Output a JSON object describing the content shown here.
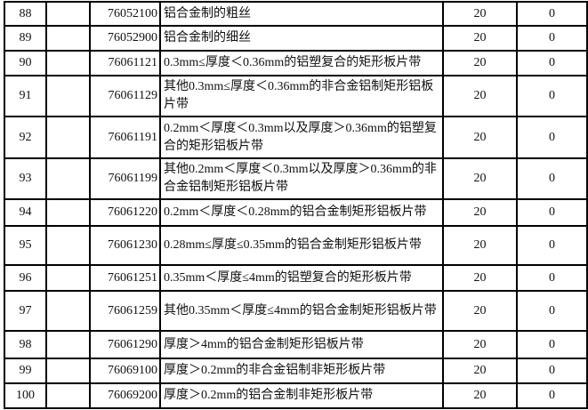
{
  "rows": [
    {
      "no": "88",
      "code": "76052100",
      "desc": "铝合金制的粗丝",
      "rate1": "20",
      "rate2": "0"
    },
    {
      "no": "89",
      "code": "76052900",
      "desc": "铝合金制的细丝",
      "rate1": "20",
      "rate2": "0"
    },
    {
      "no": "90",
      "code": "76061121",
      "desc": "0.3mm≤厚度＜0.36mm的铝塑复合的矩形板片带",
      "rate1": "20",
      "rate2": "0"
    },
    {
      "no": "91",
      "code": "76061129",
      "desc": "其他0.3mm≤厚度＜0.36mm的非合金铝制矩形铝板片带",
      "rate1": "20",
      "rate2": "0"
    },
    {
      "no": "92",
      "code": "76061191",
      "desc": "0.2mm＜厚度＜0.3mm以及厚度＞0.36mm的铝塑复合的矩形铝板片带",
      "rate1": "20",
      "rate2": "0"
    },
    {
      "no": "93",
      "code": "76061199",
      "desc": "其他0.2mm＜厚度＜0.3mm以及厚度＞0.36mm的非合金铝制矩形铝板片带",
      "rate1": "20",
      "rate2": "0"
    },
    {
      "no": "94",
      "code": "76061220",
      "desc": "0.2mm＜厚度＜0.28mm的铝合金制矩形铝板片带",
      "rate1": "20",
      "rate2": "0"
    },
    {
      "no": "95",
      "code": "76061230",
      "desc": "0.28mm≤厚度≤0.35mm的铝合金制矩形铝板片带",
      "rate1": "20",
      "rate2": "0"
    },
    {
      "no": "96",
      "code": "76061251",
      "desc": "0.35mm＜厚度≤4mm的铝塑复合的矩形板片带",
      "rate1": "20",
      "rate2": "0"
    },
    {
      "no": "97",
      "code": "76061259",
      "desc": "其他0.35mm＜厚度≤4mm的铝合金制矩形铝板片带",
      "rate1": "20",
      "rate2": "0"
    },
    {
      "no": "98",
      "code": "76061290",
      "desc": "厚度＞4mm的铝合金制矩形铝板片带",
      "rate1": "20",
      "rate2": "0"
    },
    {
      "no": "99",
      "code": "76069100",
      "desc": "厚度＞0.2mm的非合金铝制非矩形板片带",
      "rate1": "20",
      "rate2": "0"
    },
    {
      "no": "100",
      "code": "76069200",
      "desc": "厚度＞0.2mm的铝合金制非矩形板片带",
      "rate1": "20",
      "rate2": "0"
    }
  ]
}
